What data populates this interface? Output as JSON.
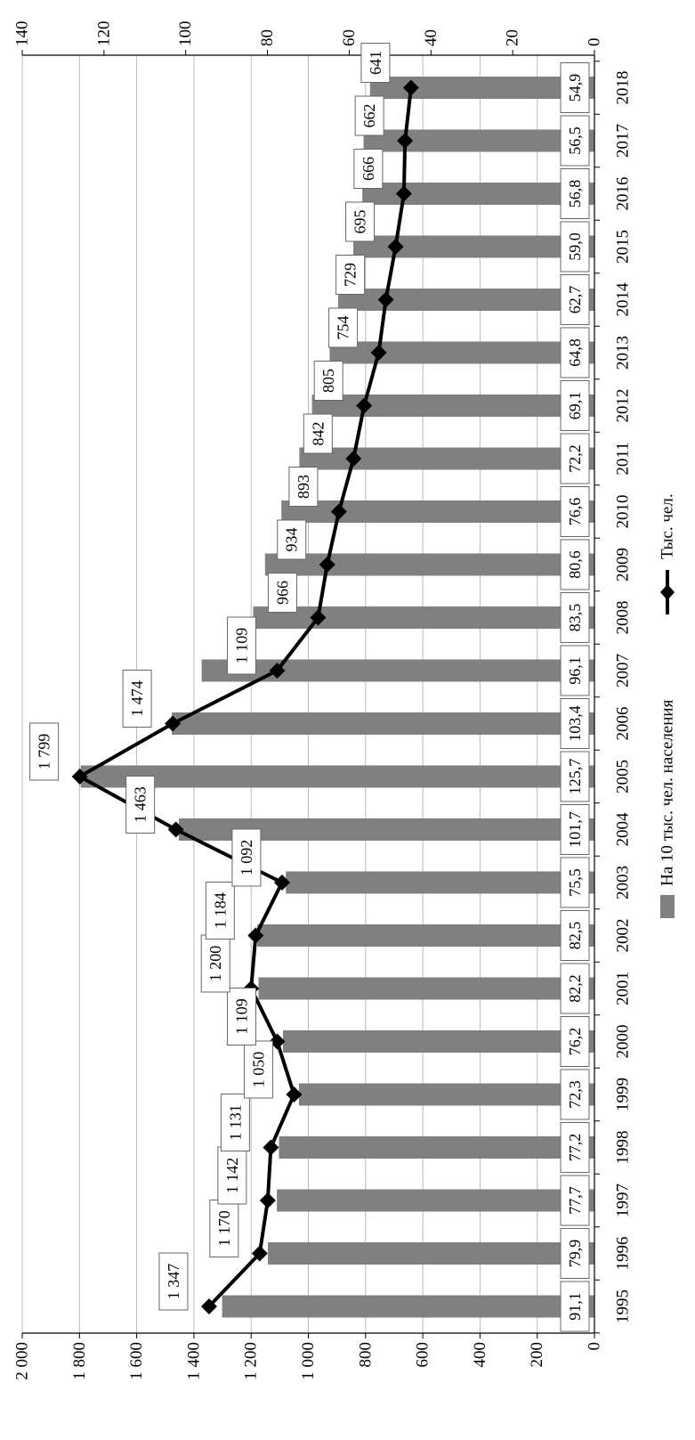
{
  "chart_data": {
    "type": "bar",
    "categories": [
      "1995",
      "1996",
      "1997",
      "1998",
      "1999",
      "2000",
      "2001",
      "2002",
      "2003",
      "2004",
      "2005",
      "2006",
      "2007",
      "2008",
      "2009",
      "2010",
      "2011",
      "2012",
      "2013",
      "2014",
      "2015",
      "2016",
      "2017",
      "2018"
    ],
    "series": [
      {
        "name": "На 10 тыс. чел. населения",
        "kind": "bar",
        "axis": "right",
        "values": [
          91.1,
          79.9,
          77.7,
          77.2,
          72.3,
          76.2,
          82.2,
          82.5,
          75.5,
          101.7,
          125.7,
          103.4,
          96.1,
          83.5,
          80.6,
          76.6,
          72.2,
          69.1,
          64.8,
          62.7,
          59.0,
          56.8,
          56.5,
          54.9
        ],
        "labels": [
          "91,1",
          "79,9",
          "77,7",
          "77,2",
          "72,3",
          "76,2",
          "82,2",
          "82,5",
          "75,5",
          "101,7",
          "125,7",
          "103,4",
          "96,1",
          "83,5",
          "80,6",
          "76,6",
          "72,2",
          "69,1",
          "64,8",
          "62,7",
          "59,0",
          "56,8",
          "56,5",
          "54,9"
        ],
        "color": "#808080"
      },
      {
        "name": "Тыс. чел.",
        "kind": "line",
        "axis": "left",
        "values": [
          1347,
          1170,
          1142,
          1131,
          1050,
          1109,
          1200,
          1184,
          1092,
          1463,
          1799,
          1474,
          1109,
          966,
          934,
          893,
          842,
          805,
          754,
          729,
          695,
          666,
          662,
          641
        ],
        "labels": [
          "1 347",
          "1 170",
          "1 142",
          "1 131",
          "1 050",
          "1 109",
          "1 200",
          "1 184",
          "1 092",
          "1 463",
          "1 799",
          "1 474",
          "1 109",
          "966",
          "934",
          "893",
          "842",
          "805",
          "754",
          "729",
          "695",
          "666",
          "662",
          "641"
        ],
        "color": "#000000"
      }
    ],
    "axes": {
      "left": {
        "range": [
          0,
          2000
        ],
        "ticks": [
          "0",
          "200",
          "400",
          "600",
          "800",
          "1 000",
          "1 200",
          "1 400",
          "1 600",
          "1 800",
          "2 000"
        ]
      },
      "right": {
        "range": [
          0,
          140
        ],
        "ticks": [
          "0",
          "20",
          "40",
          "60",
          "80",
          "100",
          "120",
          "140"
        ]
      }
    },
    "grid": true,
    "legend_position": "bottom",
    "orientation": "rotated-90"
  }
}
